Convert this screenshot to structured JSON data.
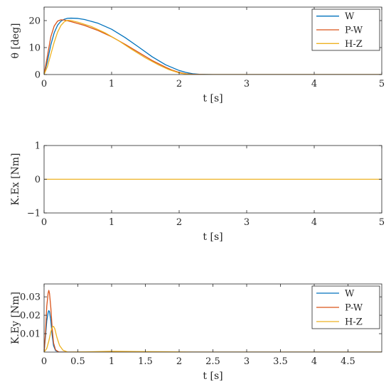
{
  "chart_data": [
    {
      "type": "line",
      "xlabel": "t [s]",
      "ylabel": "θ [deg]",
      "xlim": [
        0,
        5
      ],
      "ylim": [
        0,
        25
      ],
      "xticks": [
        0,
        1,
        2,
        3,
        4,
        5
      ],
      "xtick_labels": [
        "0",
        "1",
        "2",
        "3",
        "4",
        "5"
      ],
      "yticks": [
        0,
        10,
        20
      ],
      "ytick_labels": [
        "0",
        "10",
        "20"
      ],
      "legend": "top-right",
      "series": [
        {
          "name": "W",
          "color": "#0072BD",
          "points": [
            [
              0,
              0
            ],
            [
              0.05,
              5
            ],
            [
              0.1,
              11
            ],
            [
              0.15,
              15.5
            ],
            [
              0.2,
              18.3
            ],
            [
              0.25,
              19.8
            ],
            [
              0.3,
              20.5
            ],
            [
              0.35,
              20.85
            ],
            [
              0.4,
              20.9
            ],
            [
              0.5,
              20.8
            ],
            [
              0.6,
              20.4
            ],
            [
              0.8,
              19.0
            ],
            [
              1.0,
              16.8
            ],
            [
              1.2,
              13.7
            ],
            [
              1.4,
              10.2
            ],
            [
              1.6,
              6.6
            ],
            [
              1.8,
              3.6
            ],
            [
              2.0,
              1.5
            ],
            [
              2.1,
              0.8
            ],
            [
              2.2,
              0.3
            ],
            [
              2.3,
              0.1
            ],
            [
              2.5,
              0
            ],
            [
              5,
              0
            ]
          ]
        },
        {
          "name": "P-W",
          "color": "#D95319",
          "points": [
            [
              0,
              0
            ],
            [
              0.05,
              7
            ],
            [
              0.1,
              14
            ],
            [
              0.15,
              18
            ],
            [
              0.2,
              19.8
            ],
            [
              0.25,
              20.3
            ],
            [
              0.3,
              20.2
            ],
            [
              0.4,
              19.6
            ],
            [
              0.6,
              18.2
            ],
            [
              0.8,
              16.3
            ],
            [
              1.0,
              14.0
            ],
            [
              1.2,
              11.2
            ],
            [
              1.4,
              8.2
            ],
            [
              1.6,
              5.2
            ],
            [
              1.8,
              2.7
            ],
            [
              1.9,
              1.6
            ],
            [
              2.0,
              0.8
            ],
            [
              2.1,
              0.3
            ],
            [
              2.2,
              0.1
            ],
            [
              2.4,
              0
            ],
            [
              5,
              0
            ]
          ]
        },
        {
          "name": "H-Z",
          "color": "#EDB120",
          "points": [
            [
              0,
              0
            ],
            [
              0.05,
              3
            ],
            [
              0.1,
              7.5
            ],
            [
              0.15,
              12
            ],
            [
              0.2,
              15.7
            ],
            [
              0.25,
              18.2
            ],
            [
              0.3,
              19.6
            ],
            [
              0.35,
              20.1
            ],
            [
              0.4,
              20.0
            ],
            [
              0.5,
              19.4
            ],
            [
              0.7,
              17.8
            ],
            [
              0.9,
              15.5
            ],
            [
              1.1,
              12.6
            ],
            [
              1.3,
              9.3
            ],
            [
              1.5,
              6.2
            ],
            [
              1.7,
              3.5
            ],
            [
              1.85,
              1.8
            ],
            [
              2.0,
              0.6
            ],
            [
              2.1,
              0.2
            ],
            [
              2.2,
              0
            ],
            [
              5,
              0
            ]
          ]
        }
      ]
    },
    {
      "type": "line",
      "xlabel": "t [s]",
      "ylabel": "K.Ex [Nm]",
      "xlim": [
        0,
        5
      ],
      "ylim": [
        -1,
        1
      ],
      "xticks": [
        0,
        1,
        2,
        3,
        4,
        5
      ],
      "xtick_labels": [
        "0",
        "1",
        "2",
        "3",
        "4",
        "5"
      ],
      "yticks": [
        -1,
        0,
        1
      ],
      "ytick_labels": [
        "−1",
        "0",
        "1"
      ],
      "series": [
        {
          "color": "#EDB120",
          "points": [
            [
              0,
              0
            ],
            [
              5,
              0
            ]
          ]
        }
      ]
    },
    {
      "type": "line",
      "xlabel": "t [s]",
      "ylabel": "K.Ey [Nm]",
      "xlim": [
        0,
        5
      ],
      "ylim": [
        0,
        0.037
      ],
      "xticks": [
        0,
        0.5,
        1,
        1.5,
        2,
        2.5,
        3,
        3.5,
        4,
        4.5
      ],
      "xtick_labels": [
        "0",
        "0.5",
        "1",
        "1.5",
        "2",
        "2.5",
        "3",
        "3.5",
        "4",
        "4.5"
      ],
      "yticks": [
        0.01,
        0.02,
        0.03
      ],
      "ytick_labels": [
        "0.01",
        "0.02",
        "0.03"
      ],
      "legend": "top-right",
      "series": [
        {
          "name": "W",
          "color": "#0072BD",
          "points": [
            [
              0,
              0
            ],
            [
              0.02,
              0.008
            ],
            [
              0.04,
              0.017
            ],
            [
              0.06,
              0.0215
            ],
            [
              0.07,
              0.0225
            ],
            [
              0.08,
              0.022
            ],
            [
              0.1,
              0.017
            ],
            [
              0.12,
              0.009
            ],
            [
              0.14,
              0.0035
            ],
            [
              0.17,
              0.0008
            ],
            [
              0.22,
              0
            ],
            [
              5,
              0
            ]
          ]
        },
        {
          "name": "P-W",
          "color": "#D95319",
          "points": [
            [
              0,
              0
            ],
            [
              0.02,
              0.01
            ],
            [
              0.04,
              0.025
            ],
            [
              0.06,
              0.032
            ],
            [
              0.07,
              0.0335
            ],
            [
              0.08,
              0.032
            ],
            [
              0.1,
              0.024
            ],
            [
              0.12,
              0.013
            ],
            [
              0.14,
              0.005
            ],
            [
              0.17,
              0.0012
            ],
            [
              0.22,
              0
            ],
            [
              5,
              0
            ]
          ]
        },
        {
          "name": "H-Z",
          "color": "#EDB120",
          "points": [
            [
              0,
              0
            ],
            [
              0.04,
              0.002
            ],
            [
              0.07,
              0.006
            ],
            [
              0.1,
              0.011
            ],
            [
              0.12,
              0.0135
            ],
            [
              0.14,
              0.014
            ],
            [
              0.16,
              0.0125
            ],
            [
              0.19,
              0.008
            ],
            [
              0.23,
              0.0035
            ],
            [
              0.28,
              0.001
            ],
            [
              0.35,
              0
            ],
            [
              0.7,
              0.0002
            ],
            [
              1.0,
              0.0004
            ],
            [
              1.4,
              0.0003
            ],
            [
              1.8,
              0.0002
            ],
            [
              2.2,
              0
            ],
            [
              5,
              0
            ]
          ]
        }
      ]
    }
  ]
}
